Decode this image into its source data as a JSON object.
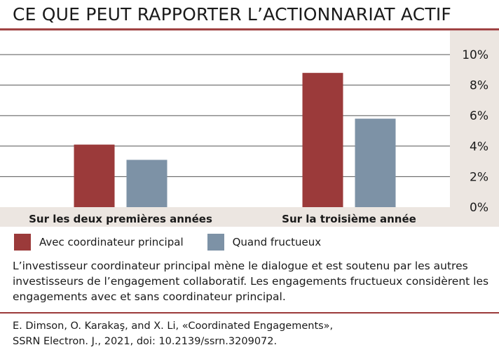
{
  "colors": {
    "accent": "#9b3a3a",
    "series_1": "#9b3a3a",
    "series_2": "#7d92a6",
    "axis_panel": "#ece6e1",
    "category_band": "#ece6e1",
    "gridline": "#555555"
  },
  "chart_data": {
    "type": "bar",
    "title": "CE QUE PEUT RAPPORTER L’ACTIONNARIAT ACTIF",
    "categories": [
      "Sur les deux premières années",
      "Sur la troisième année"
    ],
    "series": [
      {
        "name": "Avec coordinateur principal",
        "values": [
          4.1,
          8.8
        ]
      },
      {
        "name": "Quand fructueux",
        "values": [
          3.1,
          5.8
        ]
      }
    ],
    "yticks": [
      "0%",
      "2%",
      "4%",
      "6%",
      "8%",
      "10%"
    ],
    "ylim": [
      0,
      10
    ],
    "grid": true,
    "axis_side": "right",
    "legend_position": "bottom"
  },
  "note": "L’investisseur coordinateur principal mène le dialogue et est soutenu par les autres investisseurs de l’engagement collaboratif. Les engagements fructueux considèrent les engagements avec et sans coordinateur principal.",
  "source": {
    "line1": "E. Dimson, O. Karakaş, and X. Li, «Coordinated Engagements»,",
    "line2": "SSRN Electron. J., 2021, doi: 10.2139/ssrn.3209072."
  }
}
